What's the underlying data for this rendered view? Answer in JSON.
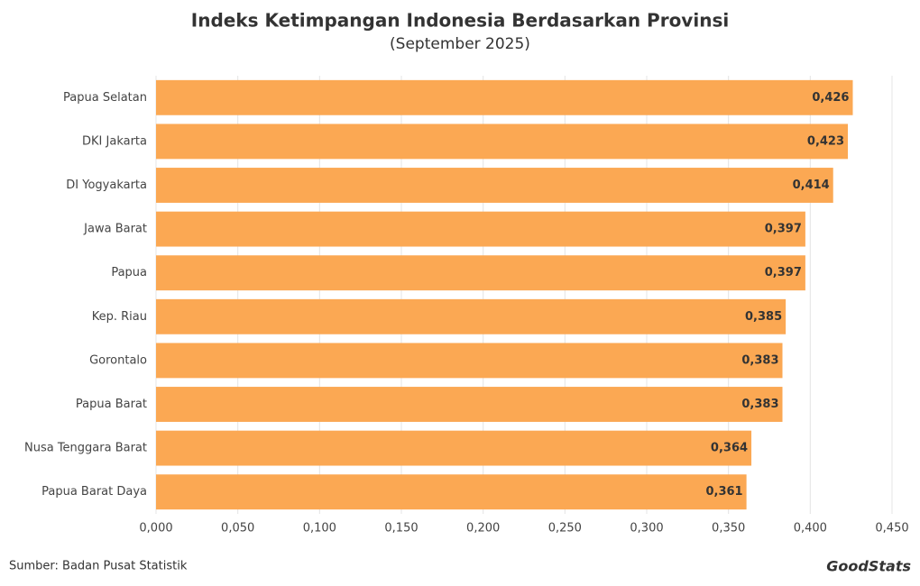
{
  "chart_data": {
    "type": "bar",
    "orientation": "horizontal",
    "title": "Indeks Ketimpangan Indonesia Berdasarkan Provinsi",
    "subtitle": "(September 2025)",
    "categories": [
      "Papua Selatan",
      "DKI Jakarta",
      "DI Yogyakarta",
      "Jawa Barat",
      "Papua",
      "Kep. Riau",
      "Gorontalo",
      "Papua Barat",
      "Nusa Tenggara Barat",
      "Papua Barat Daya"
    ],
    "values": [
      0.426,
      0.423,
      0.414,
      0.397,
      0.397,
      0.385,
      0.383,
      0.383,
      0.364,
      0.361
    ],
    "value_labels": [
      "0,426",
      "0,423",
      "0,414",
      "0,397",
      "0,397",
      "0,385",
      "0,383",
      "0,383",
      "0,364",
      "0,361"
    ],
    "color": "#fba853",
    "xlim": [
      0,
      0.45
    ],
    "xticks": [
      {
        "value": 0,
        "label": "0,000"
      },
      {
        "value": 0.05,
        "label": "0,050"
      },
      {
        "value": 0.1,
        "label": "0,100"
      },
      {
        "value": 0.15,
        "label": "0,150"
      },
      {
        "value": 0.2,
        "label": "0,200"
      },
      {
        "value": 0.25,
        "label": "0,250"
      },
      {
        "value": 0.3,
        "label": "0,300"
      },
      {
        "value": 0.35,
        "label": "0,350"
      },
      {
        "value": 0.4,
        "label": "0,400"
      },
      {
        "value": 0.45,
        "label": "0,450"
      }
    ],
    "grid": true,
    "source": "Sumber: Badan Pusat Statistik",
    "brand": "GoodStats"
  }
}
